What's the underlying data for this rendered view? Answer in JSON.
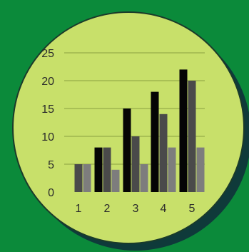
{
  "colors": {
    "page_background": "#0b8a3a",
    "badge_fill": "#c8e06a",
    "badge_shadow": "#0f3a3a",
    "badge_outline": "#1a3a2a",
    "gridline": "#8aa040",
    "axis_text": "#2b2b2b"
  },
  "chart_data": {
    "type": "bar",
    "title": "",
    "xlabel": "",
    "ylabel": "",
    "categories": [
      "1",
      "2",
      "3",
      "4",
      "5"
    ],
    "ylim": [
      0,
      25
    ],
    "yticks": [
      "0",
      "5",
      "10",
      "15",
      "20",
      "25"
    ],
    "grid": true,
    "legend": "none",
    "series": [
      {
        "color": "#050505",
        "values": [
          0,
          8,
          15,
          18,
          22
        ]
      },
      {
        "color": "#4a4a4a",
        "values": [
          5,
          8,
          10,
          14,
          20
        ]
      },
      {
        "color": "#7d7d7d",
        "values": [
          5,
          4,
          5,
          8,
          8
        ]
      }
    ]
  }
}
